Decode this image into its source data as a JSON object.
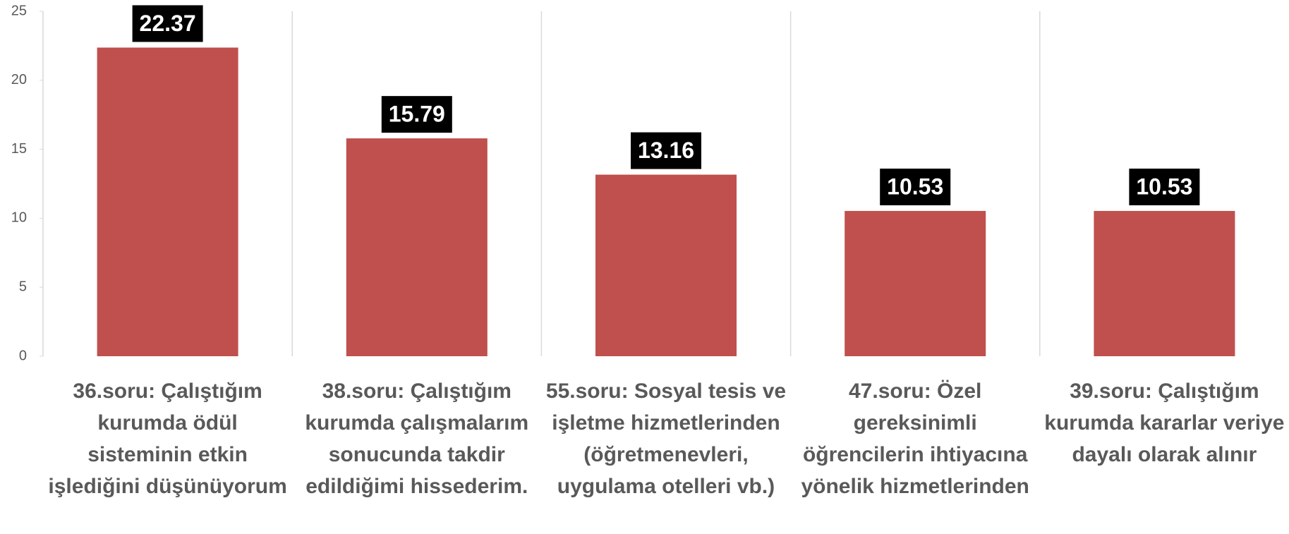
{
  "chart_data": {
    "type": "bar",
    "categories": [
      "36.soru: Çalıştığım kurumda ödül sisteminin etkin işlediğini düşünüyorum",
      "38.soru: Çalıştığım kurumda çalışmalarım sonucunda takdir edildiğimi hissederim.",
      "55.soru: Sosyal tesis ve işletme hizmetlerinden (öğretmenevleri, uygulama otelleri vb.)",
      "47.soru: Özel gereksinimli öğrencilerin ihtiyacına yönelik hizmetlerinden",
      "39.soru: Çalıştığım kurumda kararlar veriye dayalı olarak alınır"
    ],
    "values": [
      22.37,
      15.79,
      13.16,
      10.53,
      10.53
    ],
    "color": "#c0504d",
    "ylim": [
      0,
      25
    ],
    "yticks": [
      0,
      5,
      10,
      15,
      20,
      25
    ],
    "grid": false
  }
}
